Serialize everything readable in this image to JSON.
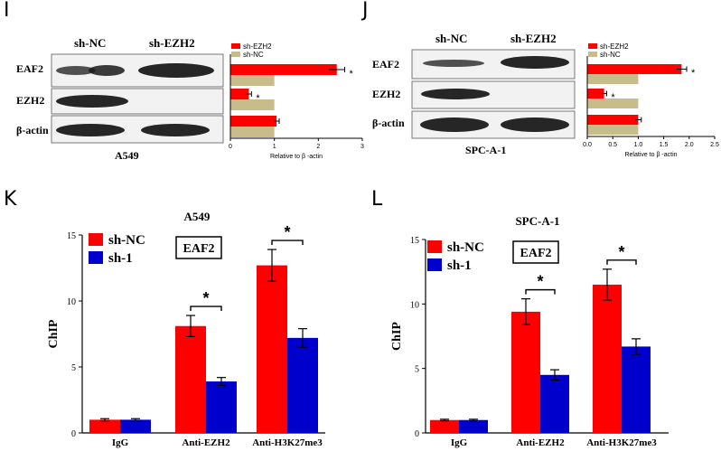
{
  "panels": {
    "I": {
      "letter": "I",
      "col_labels": [
        "sh-NC",
        "sh-EZH2"
      ],
      "row_labels": [
        "EAF2",
        "EZH2",
        "β-actin"
      ],
      "cell_line": "A549"
    },
    "J": {
      "letter": "J",
      "col_labels": [
        "sh-NC",
        "sh-EZH2"
      ],
      "row_labels": [
        "EAF2",
        "EZH2",
        "β-actin"
      ],
      "cell_line": "SPC-A-1"
    },
    "K": {
      "letter": "K"
    },
    "L": {
      "letter": "L"
    }
  },
  "colors": {
    "red": "#ff0000",
    "blue": "#0000cc",
    "tan": "#c8bd8a",
    "blot_band": "#1a1a1a"
  },
  "chart_data": [
    {
      "id": "I-bar",
      "type": "bar",
      "orientation": "horizontal",
      "categories": [
        "EAF2",
        "EZH2",
        "β-actin"
      ],
      "series": [
        {
          "name": "sh-EZH2",
          "color": "#ff0000",
          "values": [
            2.42,
            0.42,
            1.05
          ],
          "errors": [
            0.18,
            0.06,
            0.06
          ]
        },
        {
          "name": "sh-NC",
          "color": "#c8bd8a",
          "values": [
            1.0,
            1.0,
            1.0
          ],
          "errors": [
            0,
            0,
            0
          ]
        }
      ],
      "significance": [
        "*",
        "*",
        ""
      ],
      "xlabel": "Relative to β -actin",
      "xlim": [
        0,
        3
      ],
      "xticks": [
        "0",
        "1",
        "2",
        "3"
      ],
      "legend": "top-left"
    },
    {
      "id": "J-bar",
      "type": "bar",
      "orientation": "horizontal",
      "categories": [
        "EAF2",
        "EZH2",
        "β-actin"
      ],
      "series": [
        {
          "name": "sh-EZH2",
          "color": "#ff0000",
          "values": [
            1.85,
            0.33,
            1.0
          ],
          "errors": [
            0.1,
            0.05,
            0.06
          ]
        },
        {
          "name": "sh-NC",
          "color": "#c8bd8a",
          "values": [
            1.0,
            1.0,
            1.0
          ],
          "errors": [
            0,
            0,
            0
          ]
        }
      ],
      "significance": [
        "*",
        "*",
        ""
      ],
      "xlabel": "Relative to β -actin",
      "xlim": [
        0,
        2.5
      ],
      "xticks": [
        "0.0",
        "0.5",
        "1.0",
        "1.5",
        "2.0",
        "2.5"
      ],
      "legend": "top-left"
    },
    {
      "id": "K-chip",
      "type": "bar",
      "title": "A549",
      "annotation": "EAF2",
      "categories": [
        "IgG",
        "Anti-EZH2",
        "Anti-H3K27me3"
      ],
      "series": [
        {
          "name": "sh-NC",
          "color": "#ff0000",
          "values": [
            1.0,
            8.1,
            12.7
          ],
          "errors": [
            0.08,
            0.8,
            1.2
          ]
        },
        {
          "name": "sh-1",
          "color": "#0000cc",
          "values": [
            1.0,
            3.9,
            7.2
          ],
          "errors": [
            0.08,
            0.3,
            0.7
          ]
        }
      ],
      "significance": [
        "",
        "*",
        "*"
      ],
      "ylabel": "ChIP",
      "ylim": [
        0,
        15
      ],
      "yticks": [
        "0",
        "5",
        "10",
        "15"
      ],
      "legend": "top-left"
    },
    {
      "id": "L-chip",
      "type": "bar",
      "title": "SPC-A-1",
      "annotation": "EAF2",
      "categories": [
        "IgG",
        "Anti-EZH2",
        "Anti-H3K27me3"
      ],
      "series": [
        {
          "name": "sh-NC",
          "color": "#ff0000",
          "values": [
            1.0,
            9.4,
            11.5
          ],
          "errors": [
            0.06,
            1.0,
            1.2
          ]
        },
        {
          "name": "sh-1",
          "color": "#0000cc",
          "values": [
            1.0,
            4.5,
            6.7
          ],
          "errors": [
            0.06,
            0.4,
            0.6
          ]
        }
      ],
      "significance": [
        "",
        "*",
        "*"
      ],
      "ylabel": "ChIP",
      "ylim": [
        0,
        15
      ],
      "yticks": [
        "0",
        "5",
        "10",
        "15"
      ],
      "legend": "top-left"
    }
  ]
}
